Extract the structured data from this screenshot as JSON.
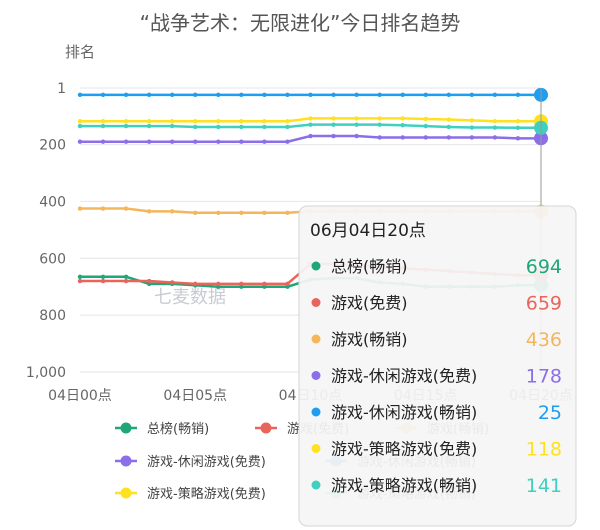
{
  "chart_data": {
    "type": "line",
    "title": "“战争艺术：无限进化”今日排名趋势",
    "ylabel": "排名",
    "y_inverted": true,
    "ylim": [
      1,
      1000
    ],
    "yticks": [
      "1",
      "200",
      "400",
      "600",
      "800",
      "1,000"
    ],
    "xticks": [
      "04日00点",
      "04日05点",
      "04日10点",
      "04日15点",
      "04日20点"
    ],
    "x": [
      "00",
      "01",
      "02",
      "03",
      "04",
      "05",
      "06",
      "07",
      "08",
      "09",
      "10",
      "11",
      "12",
      "13",
      "14",
      "15",
      "16",
      "17",
      "18",
      "19",
      "20"
    ],
    "grid": "horizontal",
    "legend_position": "bottom",
    "series": [
      {
        "name": "总榜(畅销)",
        "color": "#1fa67a",
        "values": [
          665,
          665,
          665,
          690,
          690,
          695,
          700,
          700,
          700,
          700,
          675,
          670,
          670,
          685,
          690,
          700,
          700,
          700,
          700,
          695,
          694
        ]
      },
      {
        "name": "游戏(免费)",
        "color": "#e8655b",
        "values": [
          680,
          680,
          680,
          680,
          685,
          690,
          690,
          690,
          690,
          690,
          620,
          620,
          625,
          630,
          635,
          640,
          645,
          650,
          655,
          660,
          659
        ]
      },
      {
        "name": "游戏(畅销)",
        "color": "#f5b55b",
        "values": [
          425,
          425,
          425,
          435,
          435,
          440,
          440,
          440,
          440,
          440,
          435,
          435,
          435,
          435,
          435,
          435,
          435,
          435,
          435,
          435,
          436
        ]
      },
      {
        "name": "游戏-休闲游戏(免费)",
        "color": "#8b6ee8",
        "values": [
          190,
          190,
          190,
          190,
          190,
          190,
          190,
          190,
          190,
          190,
          170,
          170,
          170,
          175,
          175,
          175,
          175,
          175,
          175,
          178,
          178
        ]
      },
      {
        "name": "游戏-休闲游戏(畅销)",
        "color": "#1e9ef0",
        "values": [
          25,
          25,
          25,
          25,
          25,
          25,
          25,
          25,
          25,
          25,
          25,
          25,
          25,
          25,
          25,
          25,
          25,
          25,
          25,
          25,
          25
        ]
      },
      {
        "name": "游戏-策略游戏(免费)",
        "color": "#ffe21f",
        "values": [
          118,
          118,
          118,
          118,
          118,
          118,
          118,
          118,
          118,
          118,
          108,
          108,
          108,
          108,
          108,
          110,
          112,
          115,
          118,
          118,
          118
        ]
      },
      {
        "name": "游戏-策略游戏(畅销)",
        "color": "#3fd0c0",
        "values": [
          135,
          135,
          135,
          135,
          135,
          138,
          138,
          138,
          138,
          138,
          130,
          130,
          130,
          130,
          132,
          135,
          138,
          140,
          140,
          141,
          141
        ]
      }
    ],
    "annotation": "七麦数据",
    "tooltip": {
      "title": "06月04日20点",
      "rows": [
        {
          "label": "总榜(畅销)",
          "value": "694",
          "color": "#1fa67a"
        },
        {
          "label": "游戏(免费)",
          "value": "659",
          "color": "#e8655b"
        },
        {
          "label": "游戏(畅销)",
          "value": "436",
          "color": "#f5b55b"
        },
        {
          "label": "游戏-休闲游戏(免费)",
          "value": "178",
          "color": "#8b6ee8"
        },
        {
          "label": "游戏-休闲游戏(畅销)",
          "value": "25",
          "color": "#1e9ef0"
        },
        {
          "label": "游戏-策略游戏(免费)",
          "value": "118",
          "color": "#ffe21f"
        },
        {
          "label": "游戏-策略游戏(畅销)",
          "value": "141",
          "color": "#3fd0c0"
        }
      ]
    }
  }
}
